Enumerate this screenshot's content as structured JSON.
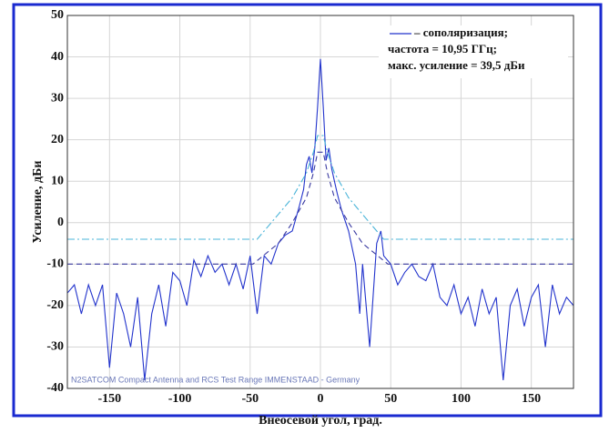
{
  "chart_data": {
    "type": "line",
    "x_label": "Внеосевой угол, град.",
    "y_label": "Усиление, дБи",
    "annotations": [
      "частота = 10,95 ГГц;",
      "макс. усиление = 39,5 дБи",
      "N2SATCOM Compact Antenna and RCS Test Range IMMENSTAAD - Germany"
    ],
    "xlim": [
      -180,
      180
    ],
    "xticks": [
      -150,
      -100,
      -50,
      0,
      50,
      100,
      150
    ],
    "ylim": [
      -40,
      50
    ],
    "yticks": [
      -40,
      -30,
      -20,
      -10,
      0,
      10,
      20,
      30,
      40,
      50
    ],
    "grid": true,
    "series": [
      {
        "name": "– сополяризация;",
        "color": "#2233cc",
        "style": "solid",
        "x": [
          -180,
          -175,
          -170,
          -165,
          -160,
          -155,
          -150,
          -145,
          -140,
          -135,
          -130,
          -125,
          -120,
          -115,
          -110,
          -105,
          -100,
          -95,
          -90,
          -85,
          -80,
          -75,
          -70,
          -65,
          -60,
          -55,
          -50,
          -45,
          -40,
          -35,
          -30,
          -25,
          -20,
          -15,
          -12,
          -10,
          -8,
          -6,
          -4,
          -2,
          0,
          2,
          4,
          6,
          8,
          10,
          12,
          15,
          20,
          25,
          28,
          30,
          35,
          40,
          43,
          45,
          50,
          55,
          60,
          65,
          70,
          75,
          80,
          85,
          90,
          95,
          100,
          105,
          110,
          115,
          120,
          125,
          130,
          135,
          140,
          145,
          150,
          155,
          160,
          165,
          170,
          175,
          180
        ],
        "values": [
          -17,
          -15,
          -22,
          -15,
          -20,
          -15,
          -35,
          -17,
          -22,
          -30,
          -18,
          -38,
          -22,
          -15,
          -25,
          -12,
          -14,
          -20,
          -9,
          -13,
          -8,
          -12,
          -10,
          -15,
          -10,
          -16,
          -8,
          -22,
          -8,
          -10,
          -5,
          -3,
          -2,
          4,
          8,
          14,
          16,
          12,
          18,
          28,
          39.5,
          28,
          15,
          18,
          13,
          10,
          7,
          3,
          -2,
          -10,
          -22,
          -10,
          -30,
          -5,
          -2,
          -8,
          -10,
          -15,
          -12,
          -10,
          -13,
          -14,
          -10,
          -18,
          -20,
          -15,
          -22,
          -18,
          -25,
          -16,
          -22,
          -18,
          -38,
          -20,
          -16,
          -25,
          -18,
          -15,
          -30,
          -15,
          -22,
          -18,
          -20
        ]
      },
      {
        "color": "#4ab4d8",
        "style": "dashdot",
        "x": [
          -180,
          -45,
          -30,
          -20,
          -10,
          -5,
          -2,
          2,
          5,
          10,
          20,
          30,
          45,
          180
        ],
        "values": [
          -4,
          -4,
          2,
          6,
          12,
          17,
          21,
          21,
          17,
          12,
          6,
          2,
          -4,
          -4
        ]
      },
      {
        "color": "#3a3aa0",
        "style": "dashed",
        "x": [
          -180,
          -48,
          -30,
          -20,
          -10,
          -5,
          -2,
          2,
          5,
          10,
          20,
          30,
          48,
          180
        ],
        "values": [
          -10,
          -10,
          -5,
          0,
          6,
          12,
          17,
          17,
          12,
          6,
          0,
          -5,
          -10,
          -10
        ]
      }
    ]
  }
}
